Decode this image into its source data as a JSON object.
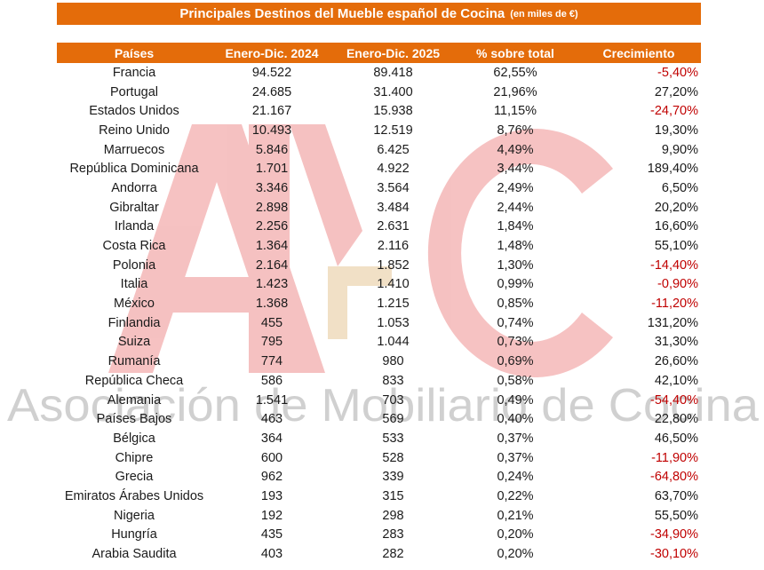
{
  "title": {
    "main": "Principales Destinos del Mueble español de Cocina",
    "unit": "(en miles de €)"
  },
  "watermark": {
    "logo": "AMC",
    "text": "Asociación de Mobiliario de Cocina"
  },
  "colors": {
    "header_bg": "#e46c0a",
    "header_text": "#ffffff",
    "negative": "#c00000"
  },
  "table": {
    "headers": [
      "Países",
      "Enero-Dic. 2024",
      "Enero-Dic. 2025",
      "% sobre total",
      "Crecimiento"
    ],
    "rows": [
      {
        "country": "Francia",
        "y2024": "94.522",
        "y2025": "89.418",
        "share": "62,55%",
        "growth": "-5,40%"
      },
      {
        "country": "Portugal",
        "y2024": "24.685",
        "y2025": "31.400",
        "share": "21,96%",
        "growth": "27,20%"
      },
      {
        "country": "Estados Unidos",
        "y2024": "21.167",
        "y2025": "15.938",
        "share": "11,15%",
        "growth": "-24,70%"
      },
      {
        "country": "Reino Unido",
        "y2024": "10.493",
        "y2025": "12.519",
        "share": "8,76%",
        "growth": "19,30%"
      },
      {
        "country": "Marruecos",
        "y2024": "5.846",
        "y2025": "6.425",
        "share": "4,49%",
        "growth": "9,90%"
      },
      {
        "country": "República Dominicana",
        "y2024": "1.701",
        "y2025": "4.922",
        "share": "3,44%",
        "growth": "189,40%"
      },
      {
        "country": "Andorra",
        "y2024": "3.346",
        "y2025": "3.564",
        "share": "2,49%",
        "growth": "6,50%"
      },
      {
        "country": "Gibraltar",
        "y2024": "2.898",
        "y2025": "3.484",
        "share": "2,44%",
        "growth": "20,20%"
      },
      {
        "country": "Irlanda",
        "y2024": "2.256",
        "y2025": "2.631",
        "share": "1,84%",
        "growth": "16,60%"
      },
      {
        "country": "Costa Rica",
        "y2024": "1.364",
        "y2025": "2.116",
        "share": "1,48%",
        "growth": "55,10%"
      },
      {
        "country": "Polonia",
        "y2024": "2.164",
        "y2025": "1.852",
        "share": "1,30%",
        "growth": "-14,40%"
      },
      {
        "country": "Italia",
        "y2024": "1.423",
        "y2025": "1.410",
        "share": "0,99%",
        "growth": "-0,90%"
      },
      {
        "country": "México",
        "y2024": "1.368",
        "y2025": "1.215",
        "share": "0,85%",
        "growth": "-11,20%"
      },
      {
        "country": "Finlandia",
        "y2024": "455",
        "y2025": "1.053",
        "share": "0,74%",
        "growth": "131,20%"
      },
      {
        "country": "Suiza",
        "y2024": "795",
        "y2025": "1.044",
        "share": "0,73%",
        "growth": "31,30%"
      },
      {
        "country": "Rumanía",
        "y2024": "774",
        "y2025": "980",
        "share": "0,69%",
        "growth": "26,60%"
      },
      {
        "country": "República Checa",
        "y2024": "586",
        "y2025": "833",
        "share": "0,58%",
        "growth": "42,10%"
      },
      {
        "country": "Alemania",
        "y2024": "1.541",
        "y2025": "703",
        "share": "0,49%",
        "growth": "-54,40%"
      },
      {
        "country": "Países Bajos",
        "y2024": "463",
        "y2025": "569",
        "share": "0,40%",
        "growth": "22,80%"
      },
      {
        "country": "Bélgica",
        "y2024": "364",
        "y2025": "533",
        "share": "0,37%",
        "growth": "46,50%"
      },
      {
        "country": "Chipre",
        "y2024": "600",
        "y2025": "528",
        "share": "0,37%",
        "growth": "-11,90%"
      },
      {
        "country": "Grecia",
        "y2024": "962",
        "y2025": "339",
        "share": "0,24%",
        "growth": "-64,80%"
      },
      {
        "country": "Emiratos Árabes Unidos",
        "y2024": "193",
        "y2025": "315",
        "share": "0,22%",
        "growth": "63,70%"
      },
      {
        "country": "Nigeria",
        "y2024": "192",
        "y2025": "298",
        "share": "0,21%",
        "growth": "55,50%"
      },
      {
        "country": "Hungría",
        "y2024": "435",
        "y2025": "283",
        "share": "0,20%",
        "growth": "-34,90%"
      },
      {
        "country": "Arabia Saudita",
        "y2024": "403",
        "y2025": "282",
        "share": "0,20%",
        "growth": "-30,10%"
      }
    ]
  }
}
